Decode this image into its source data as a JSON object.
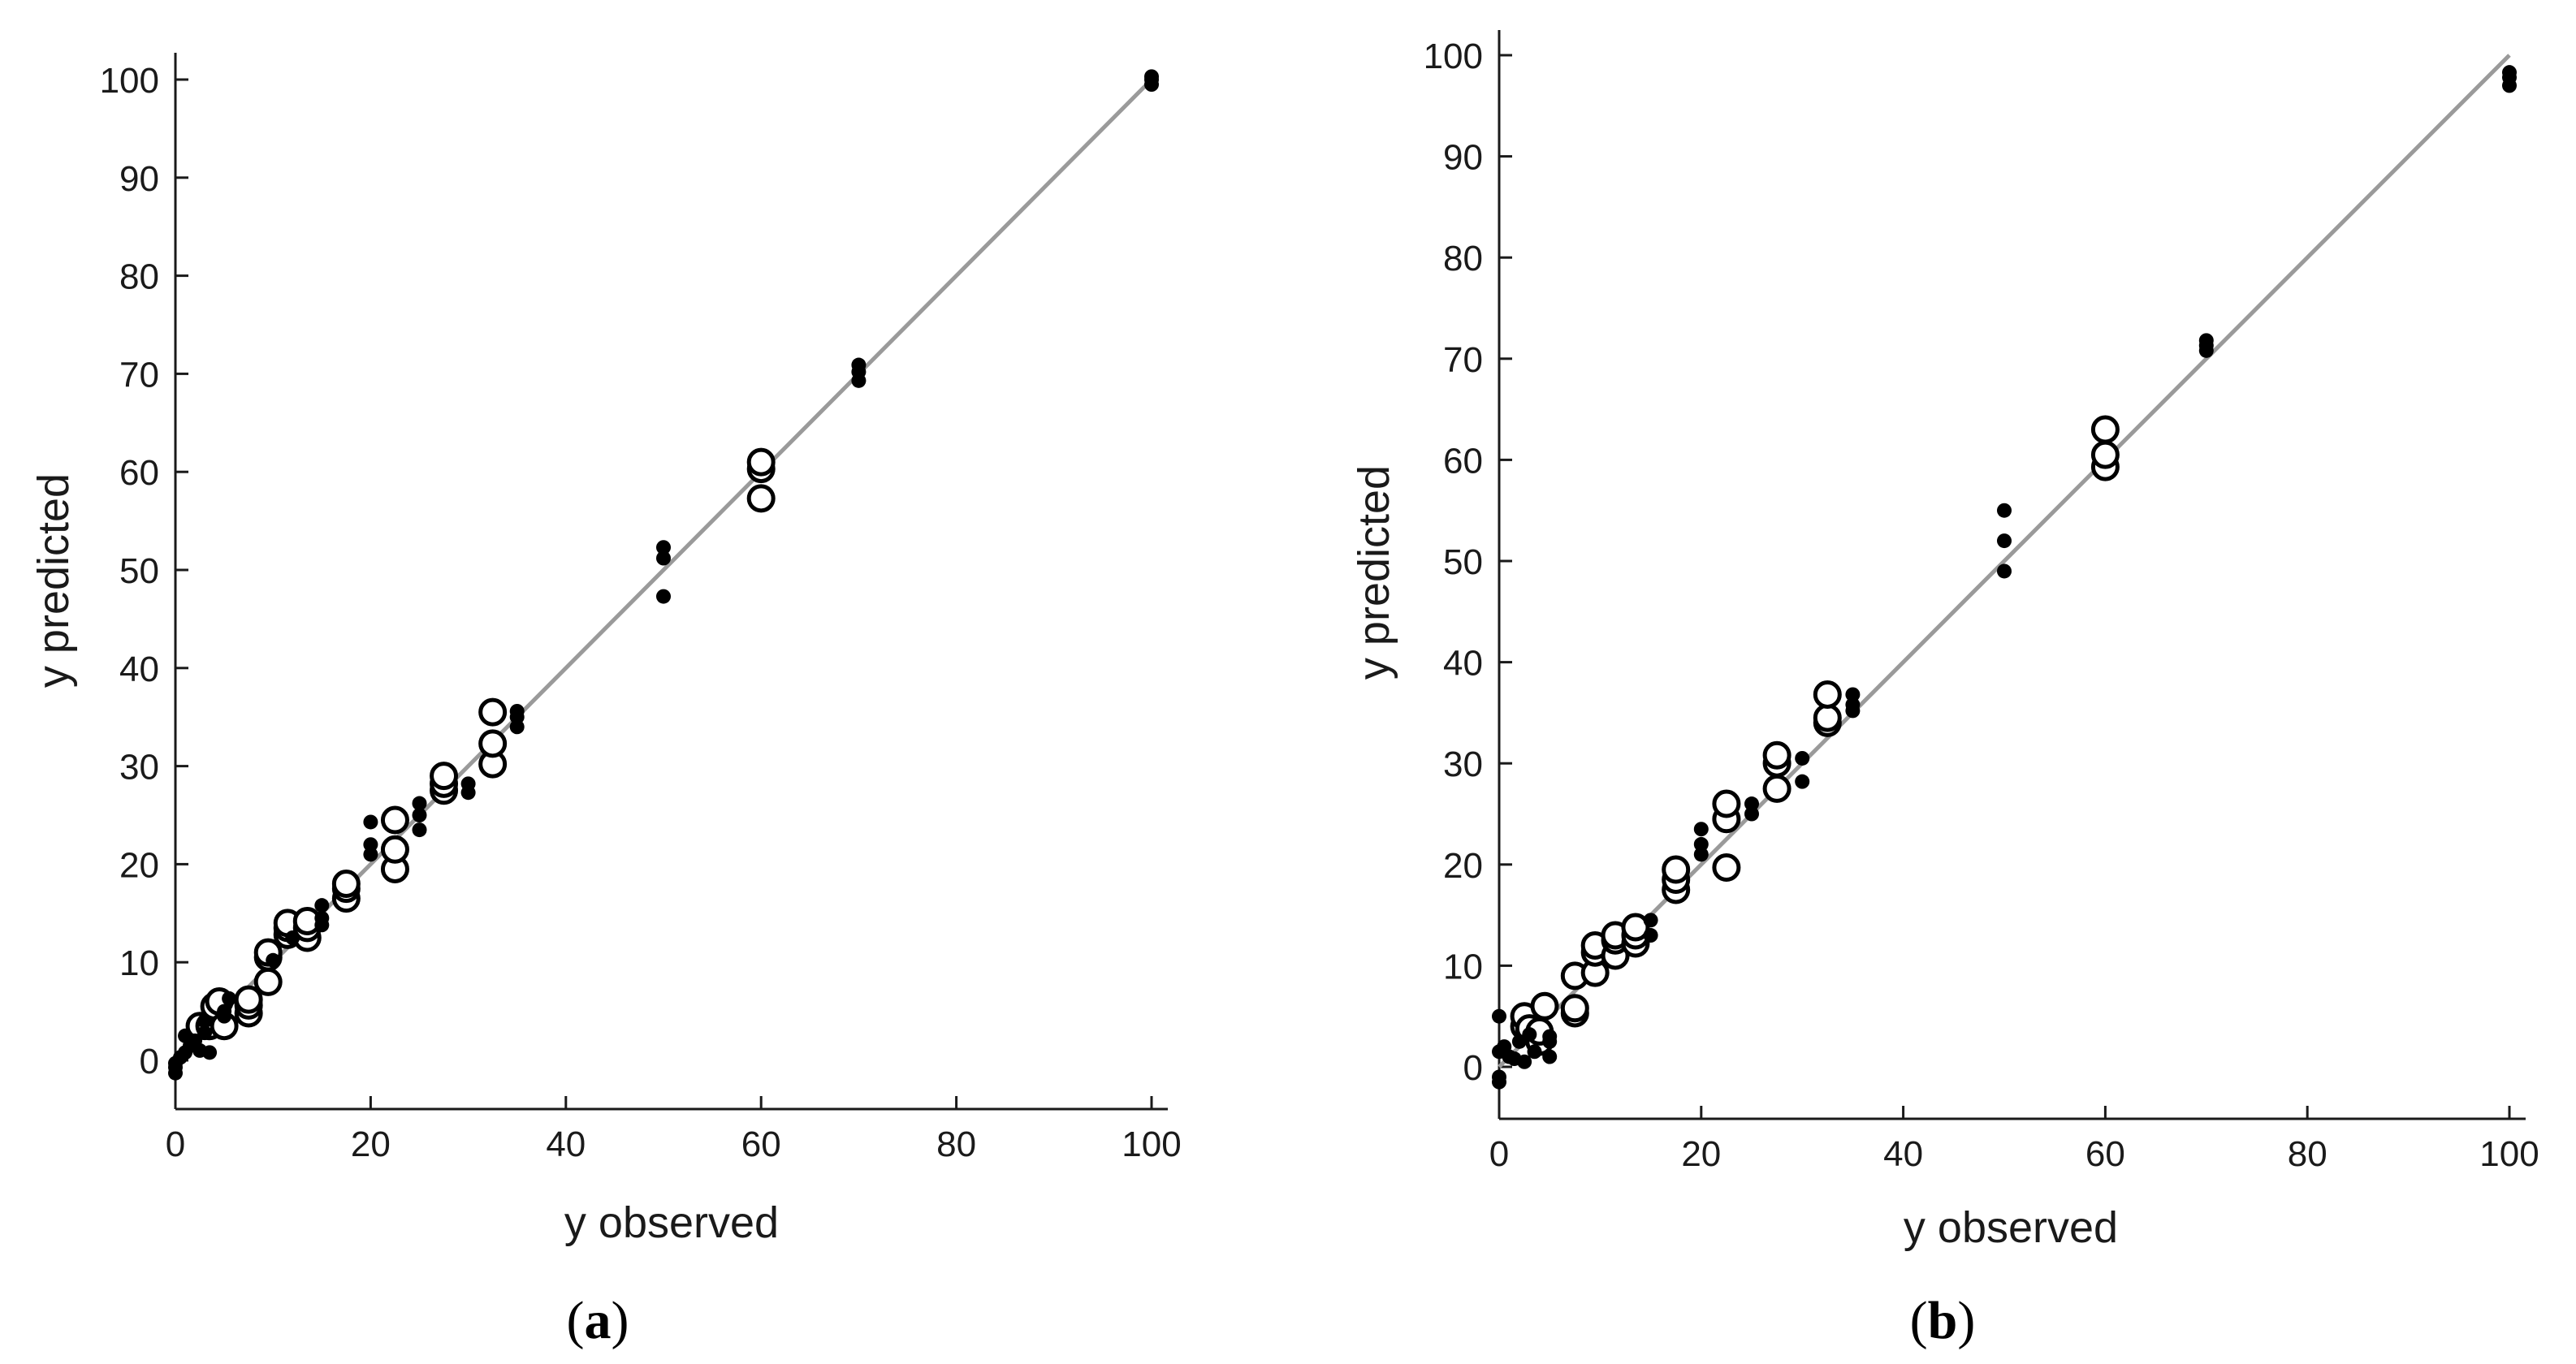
{
  "chart_data": [
    {
      "type": "scatter",
      "panel_label": "a",
      "xlabel": "y observed",
      "ylabel": "y predicted",
      "xlim": [
        0,
        100
      ],
      "ylim": [
        -4,
        103
      ],
      "xticks": [
        0,
        20,
        40,
        60,
        80,
        100
      ],
      "yticks": [
        0,
        10,
        20,
        30,
        40,
        50,
        60,
        70,
        80,
        90,
        100
      ],
      "reference_line": [
        [
          0,
          0
        ],
        [
          100,
          100
        ]
      ],
      "series": [
        {
          "name": "open circles",
          "marker": "open-circle",
          "points": [
            [
              2.5,
              3.5
            ],
            [
              3.5,
              3.5
            ],
            [
              4,
              5.5
            ],
            [
              4.5,
              6
            ],
            [
              5,
              3.5
            ],
            [
              7.5,
              4.8
            ],
            [
              7.5,
              5.6
            ],
            [
              7.5,
              6.2
            ],
            [
              9.5,
              8
            ],
            [
              9.5,
              10.5
            ],
            [
              9.5,
              11
            ],
            [
              11.5,
              12.8
            ],
            [
              11.5,
              13.5
            ],
            [
              11.5,
              14
            ],
            [
              13.5,
              12.5
            ],
            [
              13.5,
              13.5
            ],
            [
              13.5,
              14.2
            ],
            [
              17.5,
              16.5
            ],
            [
              17.5,
              17.5
            ],
            [
              17.5,
              18
            ],
            [
              22.5,
              19.5
            ],
            [
              22.5,
              21.5
            ],
            [
              22.5,
              24.5
            ],
            [
              27.5,
              27.5
            ],
            [
              27.5,
              28.2
            ],
            [
              27.5,
              29
            ],
            [
              32.5,
              30.2
            ],
            [
              32.5,
              32.3
            ],
            [
              32.5,
              35.5
            ],
            [
              60,
              57.3
            ],
            [
              60,
              60.3
            ],
            [
              60,
              61
            ]
          ]
        },
        {
          "name": "filled dots",
          "marker": "filled-dot",
          "points": [
            [
              0,
              -1.3
            ],
            [
              0,
              -0.7
            ],
            [
              0,
              -0.3
            ],
            [
              0.5,
              0.3
            ],
            [
              1,
              0.8
            ],
            [
              1,
              2.5
            ],
            [
              1.5,
              1.5
            ],
            [
              2,
              2
            ],
            [
              2.5,
              1
            ],
            [
              3,
              2.8
            ],
            [
              3,
              4
            ],
            [
              3.5,
              0.8
            ],
            [
              5,
              5
            ],
            [
              5,
              4.5
            ],
            [
              5.5,
              6.3
            ],
            [
              10,
              10.2
            ],
            [
              12,
              12.5
            ],
            [
              15,
              13.8
            ],
            [
              15,
              14.5
            ],
            [
              15,
              15.8
            ],
            [
              20,
              21
            ],
            [
              20,
              22
            ],
            [
              20,
              24.3
            ],
            [
              25,
              23.5
            ],
            [
              25,
              25
            ],
            [
              25,
              26.2
            ],
            [
              30,
              27.3
            ],
            [
              30,
              28.2
            ],
            [
              35,
              34
            ],
            [
              35,
              35
            ],
            [
              35,
              35.6
            ],
            [
              50,
              47.3
            ],
            [
              50,
              51.2
            ],
            [
              50,
              52.3
            ],
            [
              70,
              69.3
            ],
            [
              70,
              70.2
            ],
            [
              70,
              70.9
            ],
            [
              100,
              99.5
            ],
            [
              100,
              100
            ],
            [
              100,
              100.3
            ]
          ]
        }
      ]
    },
    {
      "type": "scatter",
      "panel_label": "b",
      "xlabel": "y observed",
      "ylabel": "y predicted",
      "xlim": [
        0,
        100
      ],
      "ylim": [
        -4,
        103
      ],
      "xticks": [
        0,
        20,
        40,
        60,
        80,
        100
      ],
      "yticks": [
        0,
        10,
        20,
        30,
        40,
        50,
        60,
        70,
        80,
        90,
        100
      ],
      "reference_line": [
        [
          0,
          0
        ],
        [
          100,
          100
        ]
      ],
      "series": [
        {
          "name": "open circles",
          "marker": "open-circle",
          "points": [
            [
              2.5,
              4
            ],
            [
              2.5,
              5
            ],
            [
              3,
              3.8
            ],
            [
              4,
              2.5
            ],
            [
              4,
              3.5
            ],
            [
              4.5,
              6
            ],
            [
              7.5,
              5.3
            ],
            [
              7.5,
              5.8
            ],
            [
              7.5,
              9
            ],
            [
              9.5,
              9.3
            ],
            [
              9.5,
              11.3
            ],
            [
              9.5,
              12
            ],
            [
              11.5,
              11
            ],
            [
              11.5,
              12.5
            ],
            [
              11.5,
              13
            ],
            [
              13.5,
              12.2
            ],
            [
              13.5,
              13
            ],
            [
              13.5,
              13.8
            ],
            [
              17.5,
              17.5
            ],
            [
              17.5,
              18.5
            ],
            [
              17.5,
              19.5
            ],
            [
              22.5,
              19.7
            ],
            [
              22.5,
              24.5
            ],
            [
              22.5,
              26
            ],
            [
              27.5,
              27.5
            ],
            [
              27.5,
              30
            ],
            [
              27.5,
              30.8
            ],
            [
              32.5,
              34
            ],
            [
              32.5,
              34.5
            ],
            [
              32.5,
              36.8
            ],
            [
              60,
              59.3
            ],
            [
              60,
              60.5
            ],
            [
              60,
              63
            ]
          ]
        },
        {
          "name": "filled dots",
          "marker": "filled-dot",
          "points": [
            [
              0,
              5
            ],
            [
              0,
              -1.5
            ],
            [
              0,
              -1
            ],
            [
              0,
              1.5
            ],
            [
              0.5,
              2
            ],
            [
              1,
              1
            ],
            [
              1.5,
              0.8
            ],
            [
              2,
              2.5
            ],
            [
              2.5,
              0.5
            ],
            [
              3,
              3.2
            ],
            [
              3.5,
              1.5
            ],
            [
              5,
              1
            ],
            [
              5,
              2.5
            ],
            [
              5,
              3
            ],
            [
              15,
              13
            ],
            [
              15,
              14.5
            ],
            [
              20,
              21
            ],
            [
              20,
              22
            ],
            [
              20,
              23.5
            ],
            [
              25,
              25
            ],
            [
              25,
              26
            ],
            [
              30,
              28.2
            ],
            [
              30,
              30.5
            ],
            [
              35,
              35.2
            ],
            [
              35,
              35.8
            ],
            [
              35,
              36.8
            ],
            [
              50,
              49
            ],
            [
              50,
              52
            ],
            [
              50,
              55
            ],
            [
              70,
              70.8
            ],
            [
              70,
              71.3
            ],
            [
              70,
              71.8
            ],
            [
              100,
              97
            ],
            [
              100,
              97.8
            ],
            [
              100,
              98.3
            ]
          ]
        }
      ]
    }
  ]
}
